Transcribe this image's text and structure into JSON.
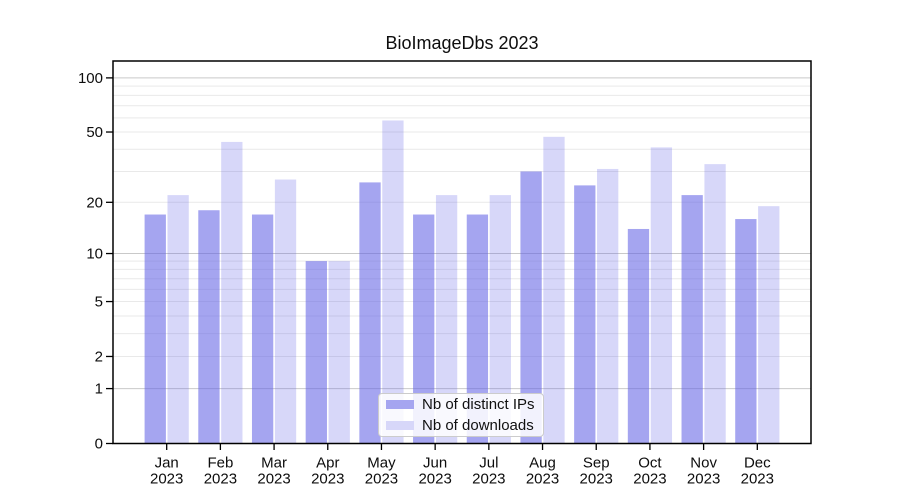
{
  "title": "BioImageDbs 2023",
  "chart_data": {
    "type": "bar",
    "title": "BioImageDbs 2023",
    "categories": [
      "Jan 2023",
      "Feb 2023",
      "Mar 2023",
      "Apr 2023",
      "May 2023",
      "Jun 2023",
      "Jul 2023",
      "Aug 2023",
      "Sep 2023",
      "Oct 2023",
      "Nov 2023",
      "Dec 2023"
    ],
    "x_tick_line1": [
      "Jan",
      "Feb",
      "Mar",
      "Apr",
      "May",
      "Jun",
      "Jul",
      "Aug",
      "Sep",
      "Oct",
      "Nov",
      "Dec"
    ],
    "x_tick_line2": "2023",
    "series": [
      {
        "name": "Nb of distinct IPs",
        "color": "rgba(100,100,230,0.58)",
        "legend_color": "#a5a5f0",
        "values": [
          17,
          18,
          17,
          9,
          26,
          17,
          17,
          30,
          25,
          14,
          22,
          16
        ]
      },
      {
        "name": "Nb of downloads",
        "color": "rgba(100,100,230,0.26)",
        "legend_color": "#d7d7f9",
        "values": [
          22,
          44,
          27,
          9,
          58,
          22,
          22,
          47,
          31,
          41,
          33,
          19
        ]
      }
    ],
    "xlabel": "",
    "ylabel": "",
    "yscale": "symlog",
    "ylim": [
      0,
      124
    ],
    "y_ticks": [
      0,
      1,
      2,
      5,
      10,
      20,
      50,
      100
    ],
    "y_major_gridlines": [
      1,
      10,
      100
    ],
    "y_minor_gridlines": [
      2,
      3,
      4,
      5,
      6,
      7,
      8,
      9,
      20,
      30,
      40,
      50,
      60,
      70,
      80,
      90
    ],
    "grid": true,
    "legend_position": "bottom-center"
  },
  "colors": {
    "grid_major": "#c9c9c9",
    "grid_minor": "#e9e9e9",
    "axis": "#000000",
    "text": "#0d0d0d",
    "background": "#ffffff"
  }
}
